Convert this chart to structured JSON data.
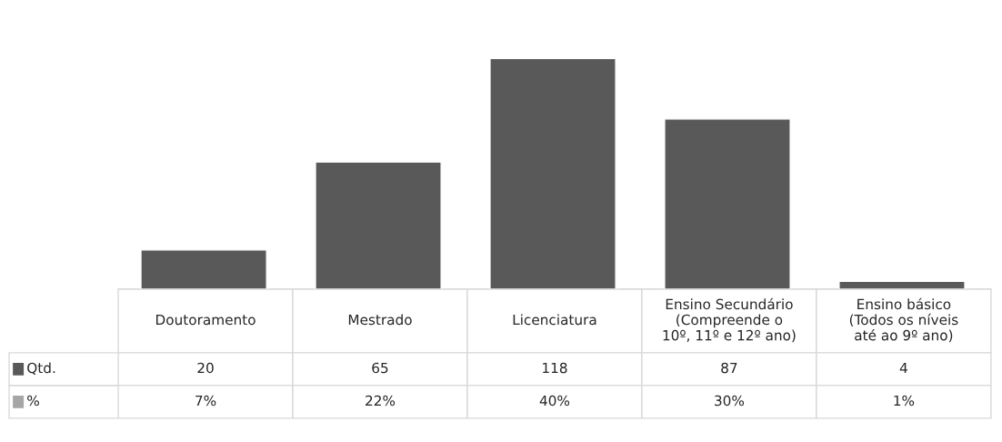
{
  "chart_data": {
    "type": "bar",
    "categories": [
      "Doutoramento",
      "Mestrado",
      "Licenciatura",
      "Ensino Secundário\n(Compreende o\n10º, 11º e 12º ano)",
      "Ensino básico\n(Todos os níveis\naté ao 9º ano)"
    ],
    "series": [
      {
        "name": "Qtd.",
        "color": "#595959",
        "values": [
          20,
          65,
          118,
          87,
          4
        ]
      },
      {
        "name": "%",
        "color": "#a6a6a6",
        "values": [
          0.07,
          0.22,
          0.4,
          0.3,
          0.01
        ],
        "value_labels": [
          "7%",
          "22%",
          "40%",
          "30%",
          "1%"
        ]
      }
    ],
    "data_labels": true,
    "legend": "bottom left"
  }
}
